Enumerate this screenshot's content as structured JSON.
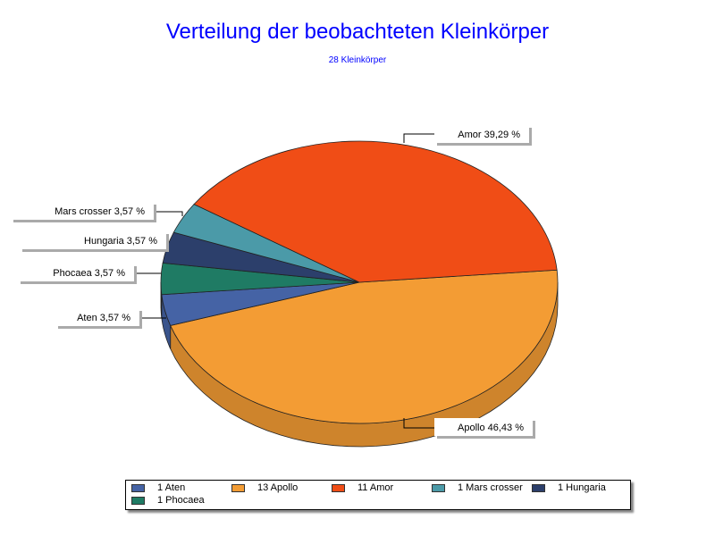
{
  "chart_data": {
    "type": "pie",
    "style": "3d",
    "title": "Verteilung der beobachteten Kleinkörper",
    "subtitle": "28 Kleinkörper",
    "total": 28,
    "slices": [
      {
        "name": "Aten",
        "count": 1,
        "percent": 3.57,
        "label": "Aten 3,57 %",
        "legend": "1 Aten",
        "color": "#4563a5"
      },
      {
        "name": "Apollo",
        "count": 13,
        "percent": 46.43,
        "label": "Apollo 46,43 %",
        "legend": "13 Apollo",
        "color": "#f39c34"
      },
      {
        "name": "Amor",
        "count": 11,
        "percent": 39.29,
        "label": "Amor 39,29 %",
        "legend": "11 Amor",
        "color": "#f04d16"
      },
      {
        "name": "Mars crosser",
        "count": 1,
        "percent": 3.57,
        "label": "Mars crosser 3,57 %",
        "legend": "1 Mars crosser",
        "color": "#4b9aa8"
      },
      {
        "name": "Hungaria",
        "count": 1,
        "percent": 3.57,
        "label": "Hungaria 3,57 %",
        "legend": "1 Hungaria",
        "color": "#2c3f6b"
      },
      {
        "name": "Phocaea",
        "count": 1,
        "percent": 3.57,
        "label": "Phocaea 3,57 %",
        "legend": "1 Phocaea",
        "color": "#1f7b64"
      }
    ],
    "legend_position": "bottom"
  }
}
